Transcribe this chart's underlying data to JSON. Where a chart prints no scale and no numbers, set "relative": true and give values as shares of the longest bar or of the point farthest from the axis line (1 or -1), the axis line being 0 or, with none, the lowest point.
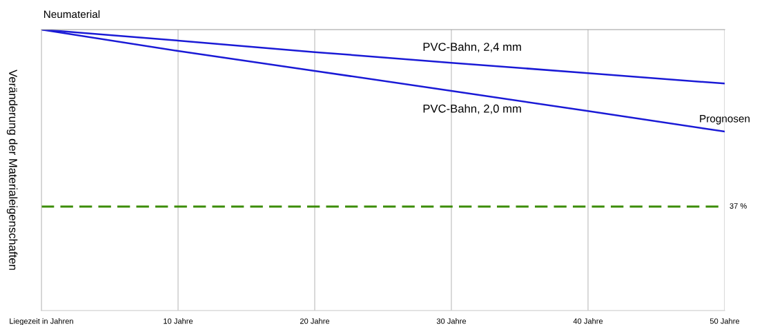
{
  "chart_data": {
    "type": "line",
    "ylabel": "Veränderung der Materialeigenschaften",
    "x": [
      0,
      10,
      20,
      30,
      40,
      50
    ],
    "xlim": [
      0,
      50
    ],
    "xticks": [
      {
        "value": 0,
        "label": "Liegezeit in Jahren"
      },
      {
        "value": 10,
        "label": "10 Jahre"
      },
      {
        "value": 20,
        "label": "20 Jahre"
      },
      {
        "value": 30,
        "label": "30 Jahre"
      },
      {
        "value": 40,
        "label": "40 Jahre"
      },
      {
        "value": 50,
        "label": "50 Jahre"
      }
    ],
    "relative": true,
    "tick_labels": "x",
    "grid": "x",
    "series": [
      {
        "name": "PVC-Bahn, 2,4 mm",
        "color": "#1a1ad6",
        "values": [
          1,
          0.961,
          0.92,
          0.882,
          0.845,
          0.808
        ]
      },
      {
        "name": "PVC-Bahn, 2,0 mm",
        "color": "#1a1ad6",
        "values": [
          1,
          0.924,
          0.853,
          0.782,
          0.71,
          0.637
        ]
      }
    ],
    "ref_lines": [
      {
        "axis": "y",
        "value": 0.37,
        "label": "37 %",
        "color": "#3a8c00",
        "line_style": "dashed"
      }
    ],
    "annotations": [
      {
        "text": "Neumaterial",
        "x": 0,
        "y": 1
      },
      "Prognosen"
    ]
  }
}
